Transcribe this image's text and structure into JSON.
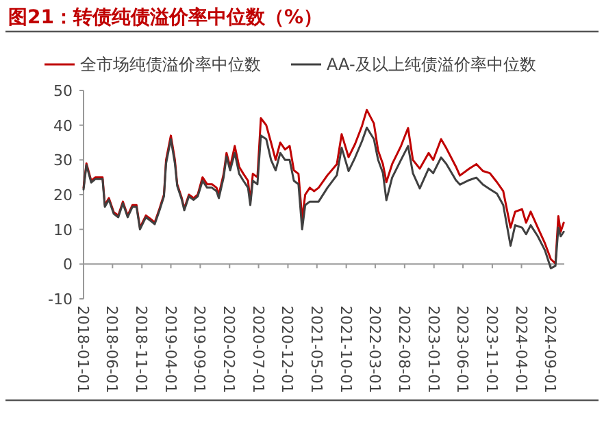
{
  "chart_data": {
    "type": "line",
    "title": "图21：转债纯债溢价率中位数（%）",
    "x": [
      "2018-01-01",
      "2018-01-16",
      "2018-02-10",
      "2018-03-04",
      "2018-04-10",
      "2018-04-22",
      "2018-05-13",
      "2018-06-07",
      "2018-07-01",
      "2018-07-25",
      "2018-08-19",
      "2018-09-13",
      "2018-10-04",
      "2018-10-22",
      "2018-11-22",
      "2018-12-16",
      "2019-01-07",
      "2019-02-01",
      "2019-02-24",
      "2019-03-07",
      "2019-04-01",
      "2019-04-22",
      "2019-05-04",
      "2019-05-28",
      "2019-06-10",
      "2019-07-04",
      "2019-07-28",
      "2019-08-19",
      "2019-09-13",
      "2019-10-07",
      "2019-11-01",
      "2019-11-25",
      "2019-12-07",
      "2020-01-01",
      "2020-01-16",
      "2020-02-04",
      "2020-02-28",
      "2020-03-22",
      "2020-04-13",
      "2020-05-07",
      "2020-05-19",
      "2020-06-01",
      "2020-06-25",
      "2020-07-13",
      "2020-08-10",
      "2020-09-04",
      "2020-09-28",
      "2020-10-22",
      "2020-11-16",
      "2020-12-10",
      "2021-01-01",
      "2021-01-25",
      "2021-02-13",
      "2021-03-01",
      "2021-03-25",
      "2021-04-16",
      "2021-05-10",
      "2021-06-25",
      "2021-08-13",
      "2021-09-07",
      "2021-10-13",
      "2021-11-16",
      "2021-12-22",
      "2022-01-16",
      "2022-02-22",
      "2022-03-16",
      "2022-04-10",
      "2022-04-28",
      "2022-05-28",
      "2022-07-13",
      "2022-08-19",
      "2022-09-13",
      "2022-10-19",
      "2022-12-04",
      "2022-12-28",
      "2023-02-07",
      "2023-03-07",
      "2023-04-25",
      "2023-05-16",
      "2023-07-04",
      "2023-08-10",
      "2023-09-13",
      "2023-10-19",
      "2023-11-25",
      "2023-12-28",
      "2024-02-04",
      "2024-02-28",
      "2024-04-04",
      "2024-04-25",
      "2024-05-19",
      "2024-06-25",
      "2024-08-01",
      "2024-09-01",
      "2024-09-25",
      "2024-10-10",
      "2024-10-22",
      "2024-11-07"
    ],
    "series": [
      {
        "name": "全市场纯债溢价率中位数",
        "color": "#c00000",
        "values": [
          22,
          29,
          24,
          25,
          25,
          17,
          19,
          15,
          14,
          18,
          14,
          17,
          17,
          10.5,
          14,
          13,
          12,
          16,
          20,
          30,
          37,
          30,
          23,
          19,
          16,
          20,
          19,
          20,
          25,
          23,
          23,
          22,
          20,
          26,
          32,
          28,
          34,
          28,
          26,
          24,
          18,
          26,
          25,
          42,
          40,
          35,
          30,
          35,
          33,
          34,
          27,
          26,
          13,
          20,
          22,
          21,
          22,
          25.6,
          28.8,
          37.4,
          30.8,
          34.6,
          39.8,
          44.4,
          40.5,
          32.7,
          28.8,
          23.6,
          28.8,
          34,
          39.2,
          30,
          27.5,
          32,
          30,
          36,
          33.3,
          28.1,
          25.5,
          27.5,
          28.8,
          26.8,
          26.2,
          23.6,
          21,
          10.5,
          15.1,
          15.8,
          11.9,
          15.1,
          10.5,
          6,
          1.4,
          0.2,
          13.8,
          9.3,
          11.9
        ]
      },
      {
        "name": "AA-及以上纯债溢价率中位数",
        "color": "#404040",
        "values": [
          21.5,
          28.5,
          23.5,
          24.5,
          24.5,
          16.5,
          18.5,
          14.5,
          13.5,
          17.5,
          13.5,
          16.5,
          16.5,
          10,
          13.5,
          12.5,
          11.5,
          15.5,
          19.5,
          29,
          36,
          29,
          22.5,
          18.5,
          15.5,
          19.5,
          18.5,
          19.5,
          24,
          22,
          22,
          21,
          19,
          25,
          31,
          27,
          32,
          26,
          24,
          22,
          17,
          24,
          23,
          37,
          36,
          30,
          27,
          32,
          30,
          30,
          24,
          23,
          10,
          17,
          18,
          18,
          18,
          22,
          25.6,
          33.5,
          26.8,
          30.7,
          35.4,
          39.3,
          36,
          30,
          26.2,
          18.4,
          24.9,
          30,
          34,
          26.2,
          21.8,
          27.5,
          26.2,
          30.7,
          28.8,
          24.2,
          22.9,
          24.2,
          24.9,
          22.9,
          21.6,
          20.3,
          17,
          5.3,
          11.2,
          10.5,
          8.6,
          11.2,
          8,
          4,
          -1.2,
          -0.5,
          10.5,
          8,
          9.3
        ]
      }
    ],
    "xlim": [
      "2018-01-01",
      "2024-11-10"
    ],
    "xticks": [
      "2018-01-01",
      "2018-06-01",
      "2018-11-01",
      "2019-04-01",
      "2019-09-01",
      "2020-02-01",
      "2020-07-01",
      "2020-12-01",
      "2021-05-01",
      "2021-10-01",
      "2022-03-01",
      "2022-08-01",
      "2023-01-01",
      "2023-06-01",
      "2023-11-01",
      "2024-04-01",
      "2024-09-01"
    ],
    "ylim": [
      -10,
      50
    ],
    "yticks": [
      -10,
      0,
      10,
      20,
      30,
      40,
      50
    ],
    "legend": "top"
  }
}
